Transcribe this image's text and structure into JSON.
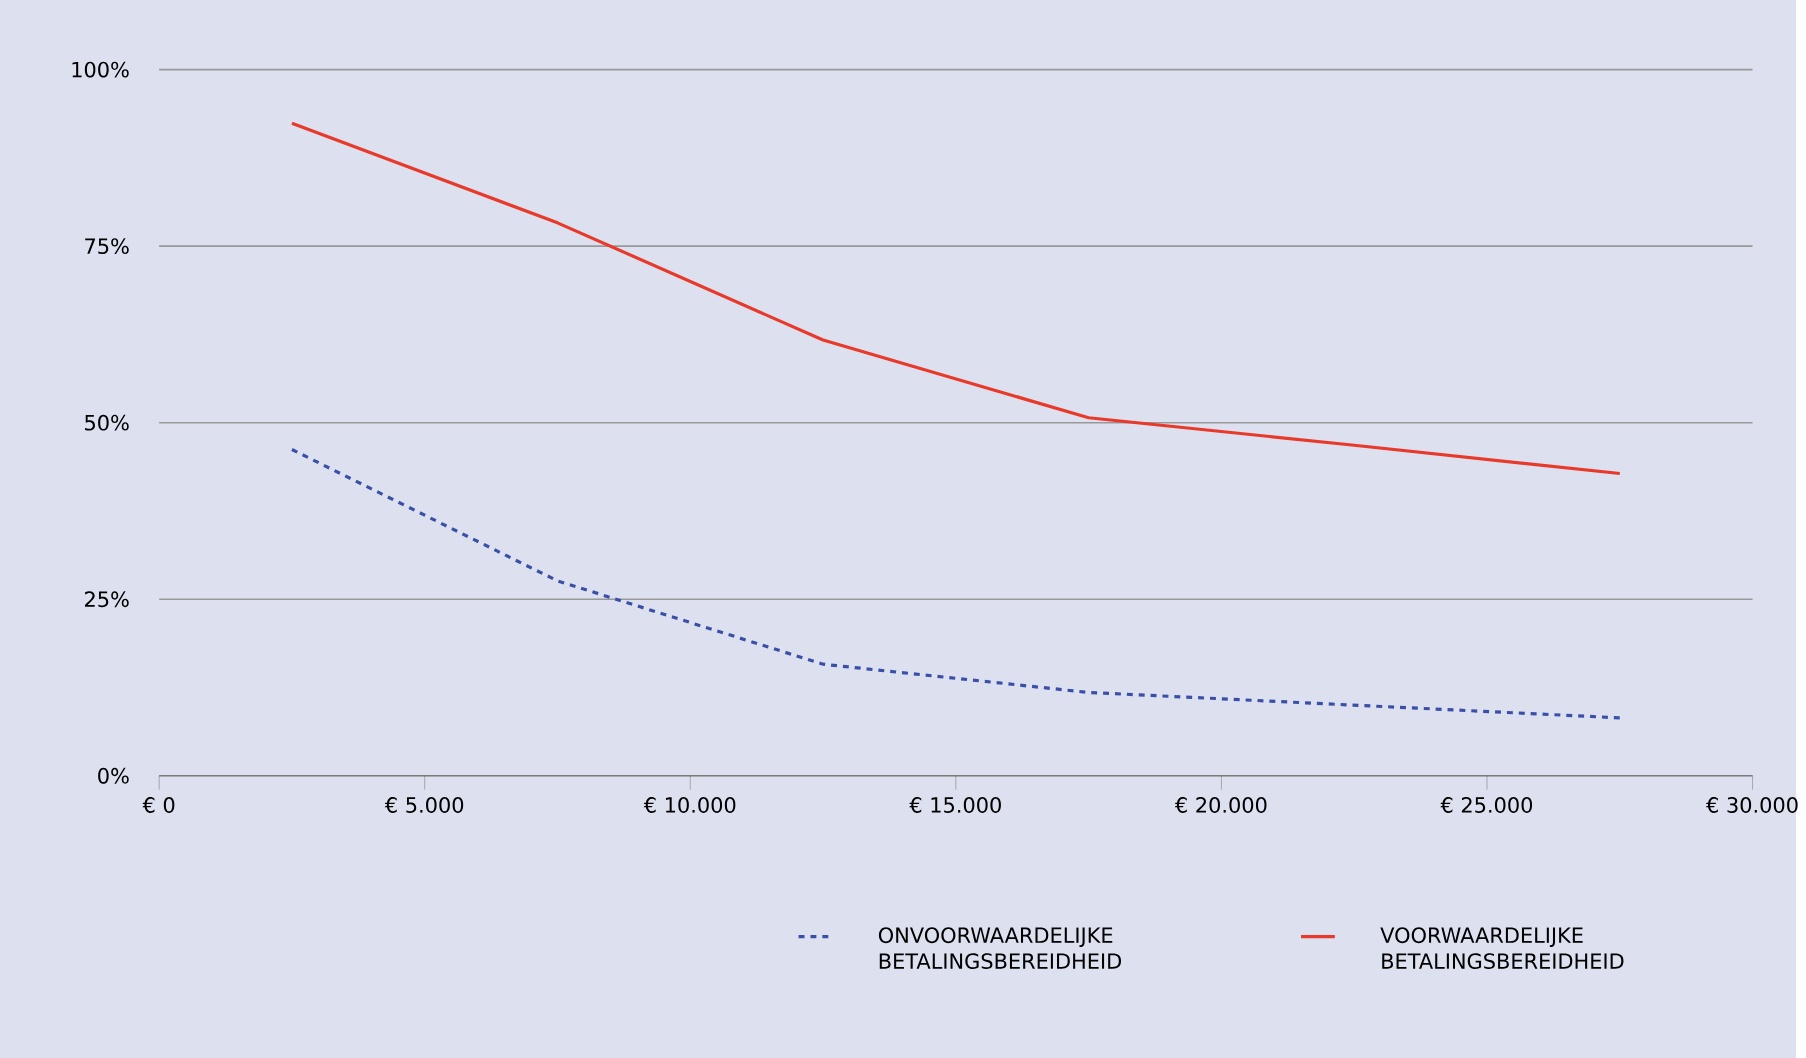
{
  "chart_data": {
    "type": "line",
    "x": [
      2500,
      7500,
      12500,
      17500,
      22500,
      27500
    ],
    "series": [
      {
        "name": "ONVOORWAARDELIJKE BETALINGSBEREIDHEID",
        "color": "#3a4fa8",
        "line_style": "dashed",
        "values": [
          46.2,
          27.6,
          15.8,
          11.8,
          10.0,
          8.2
        ]
      },
      {
        "name": "VOORWAARDELIJKE BETALINGSBEREIDHEID",
        "color": "#e8392a",
        "line_style": "solid",
        "values": [
          92.4,
          78.3,
          61.7,
          50.7,
          46.8,
          42.8
        ]
      }
    ],
    "xlim": [
      0,
      30000
    ],
    "xticks": [
      {
        "value": 0,
        "label": "€ 0"
      },
      {
        "value": 5000,
        "label": "€ 5.000"
      },
      {
        "value": 10000,
        "label": "€ 10.000"
      },
      {
        "value": 15000,
        "label": "€ 15.000"
      },
      {
        "value": 20000,
        "label": "€ 20.000"
      },
      {
        "value": 25000,
        "label": "€ 25.000"
      },
      {
        "value": 30000,
        "label": "€ 30.000"
      }
    ],
    "ylim": [
      0,
      100
    ],
    "yticks": [
      {
        "value": 0,
        "label": "0%"
      },
      {
        "value": 25,
        "label": "25%"
      },
      {
        "value": 50,
        "label": "50%"
      },
      {
        "value": 75,
        "label": "75%"
      },
      {
        "value": 100,
        "label": "100%"
      }
    ],
    "grid": "y",
    "legend": "bottom right"
  }
}
